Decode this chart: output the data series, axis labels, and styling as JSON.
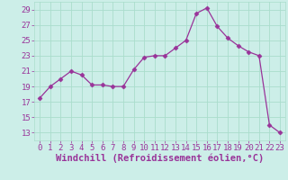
{
  "x": [
    0,
    1,
    2,
    3,
    4,
    5,
    6,
    7,
    8,
    9,
    10,
    11,
    12,
    13,
    14,
    15,
    16,
    17,
    18,
    19,
    20,
    21,
    22,
    23
  ],
  "y": [
    17.5,
    19.0,
    20.0,
    21.0,
    20.5,
    19.2,
    19.2,
    19.0,
    19.0,
    21.2,
    22.8,
    23.0,
    23.0,
    24.0,
    25.0,
    28.5,
    29.2,
    26.8,
    25.3,
    24.3,
    23.5,
    23.0,
    14.0,
    13.0
  ],
  "line_color": "#993399",
  "marker": "D",
  "marker_size": 2.5,
  "xlabel": "Windchill (Refroidissement éolien,°C)",
  "xlim": [
    -0.5,
    23.5
  ],
  "ylim": [
    12,
    30
  ],
  "yticks": [
    13,
    15,
    17,
    19,
    21,
    23,
    25,
    27,
    29
  ],
  "xticks": [
    0,
    1,
    2,
    3,
    4,
    5,
    6,
    7,
    8,
    9,
    10,
    11,
    12,
    13,
    14,
    15,
    16,
    17,
    18,
    19,
    20,
    21,
    22,
    23
  ],
  "background_color": "#cceee8",
  "grid_color": "#aaddcc",
  "tick_color": "#993399",
  "label_color": "#993399",
  "tick_fontsize": 6.5,
  "xlabel_fontsize": 7.5
}
